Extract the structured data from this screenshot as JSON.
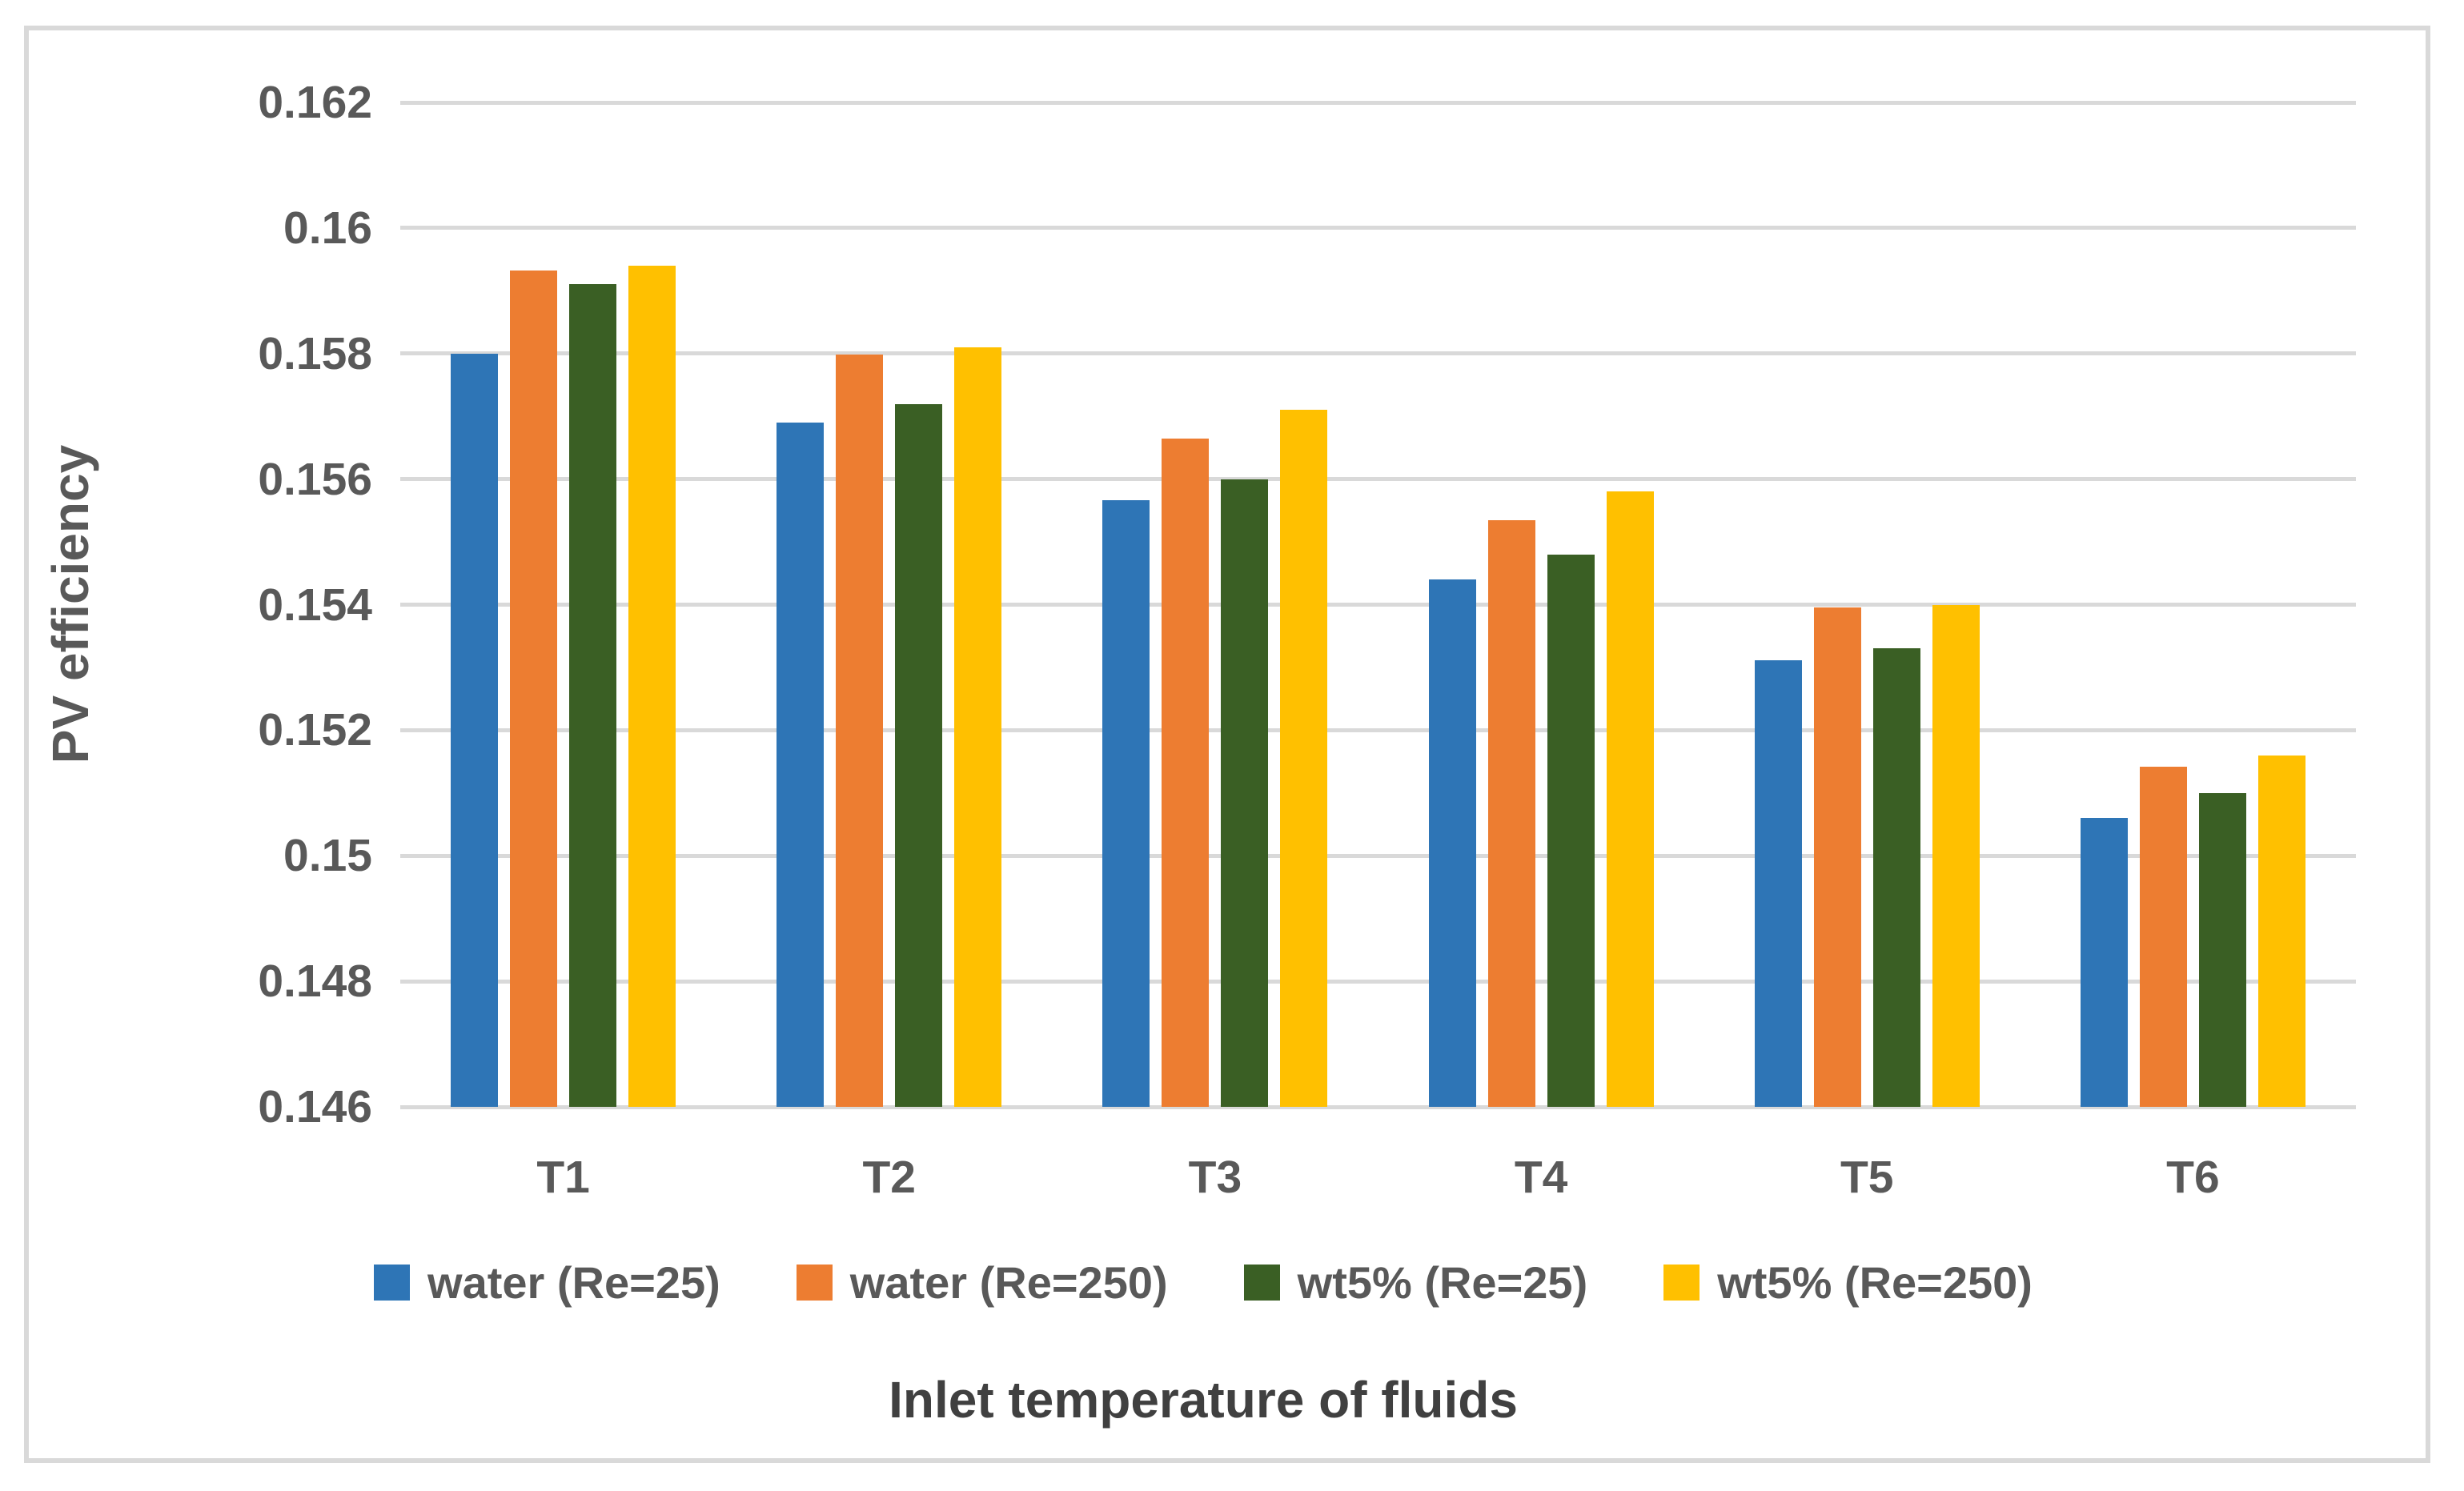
{
  "figure": {
    "background": "#FFFFFF",
    "border_color": "#D9D9D9",
    "gridline_color": "#D9D9D9",
    "text_color": "#595959"
  },
  "chart_data": {
    "type": "bar",
    "title": "",
    "xlabel": "Inlet temperature of fluids",
    "ylabel": "PV efficiency",
    "categories": [
      "T1",
      "T2",
      "T3",
      "T4",
      "T5",
      "T6"
    ],
    "series": [
      {
        "name": "water (Re=25)",
        "color": "#2E75B6",
        "values": [
          0.158,
          0.1569,
          0.15567,
          0.1544,
          0.15312,
          0.1506
        ]
      },
      {
        "name": "water (Re=250)",
        "color": "#ED7D31",
        "values": [
          0.15932,
          0.15798,
          0.15665,
          0.15535,
          0.15395,
          0.15142
        ]
      },
      {
        "name": "wt5% (Re=25)",
        "color": "#3A5F24",
        "values": [
          0.1591,
          0.1572,
          0.156,
          0.1548,
          0.1533,
          0.151
        ]
      },
      {
        "name": "wt5% (Re=250)",
        "color": "#FFC000",
        "values": [
          0.1594,
          0.1581,
          0.1571,
          0.1558,
          0.154,
          0.1516
        ]
      }
    ],
    "ylim": [
      0.146,
      0.162
    ],
    "ytick_step": 0.002,
    "ytick_labels": [
      "0.146",
      "0.148",
      "0.15",
      "0.152",
      "0.154",
      "0.156",
      "0.158",
      "0.16",
      "0.162"
    ],
    "grid": true,
    "legend_position": "bottom"
  }
}
